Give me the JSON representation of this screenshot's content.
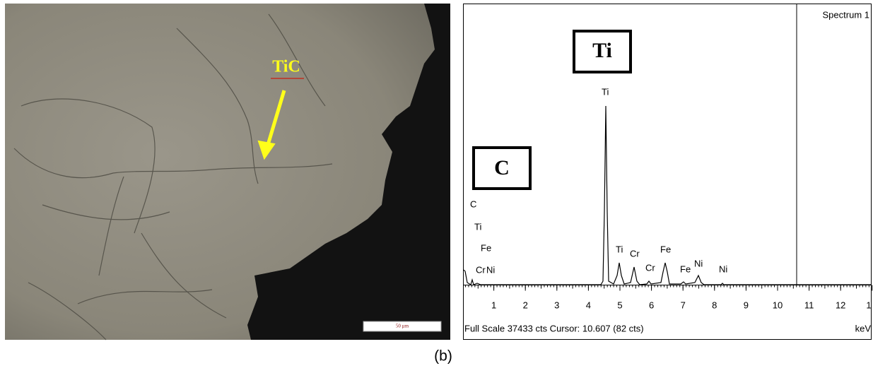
{
  "micrograph": {
    "label": "TiC",
    "scale_bar": "50 µm"
  },
  "spectrum": {
    "title": "Spectrum 1",
    "boxes": [
      "Ti",
      "C"
    ],
    "left_labels": [
      "C",
      "Ti",
      "Fe",
      "Cr",
      "Ni"
    ],
    "peak_labels": [
      "Ti",
      "Ti",
      "Cr",
      "Cr",
      "Fe",
      "Fe",
      "Ni",
      "Ni"
    ],
    "x_tick_labels": [
      "1",
      "2",
      "3",
      "4",
      "5",
      "6",
      "7",
      "8",
      "9",
      "10",
      "11",
      "12",
      "1"
    ],
    "footer": "Full Scale 37433 cts Cursor: 10.607  (82 cts)",
    "unit": "keV"
  },
  "caption": "(b)"
}
